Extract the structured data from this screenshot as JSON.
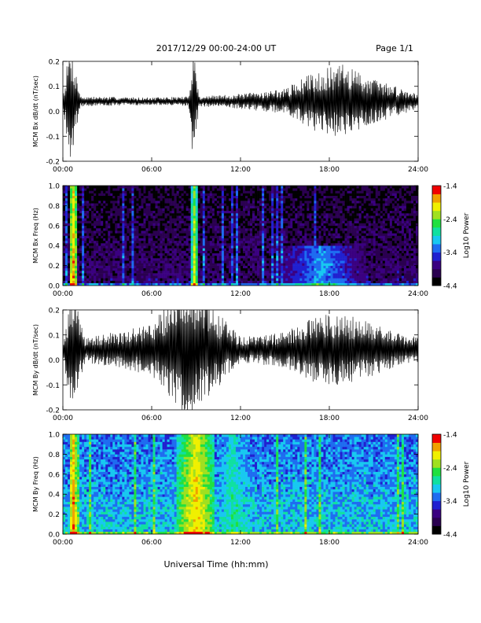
{
  "header": {
    "date_range": "2017/12/29  00:00-24:00 UT",
    "page": "Page 1/1"
  },
  "xaxis_label": "Universal Time (hh:mm)",
  "time_ticks": [
    "00:00",
    "06:00",
    "12:00",
    "18:00",
    "24:00"
  ],
  "colors": {
    "colormap": [
      "#000000",
      "#2a0050",
      "#3a0080",
      "#2020d0",
      "#1e6cf0",
      "#18c8f0",
      "#10e0a0",
      "#20e040",
      "#a0e020",
      "#f0f000",
      "#f0a000",
      "#f00000"
    ]
  },
  "chart_data": [
    {
      "type": "line",
      "ylabel": "MCM Bx dB/dt (nT/sec)",
      "x_unit": "hours UT",
      "xlim": [
        0,
        24
      ],
      "ylim": [
        -0.2,
        0.2
      ],
      "yticks": [
        "-0.2",
        "-0.1",
        "0.0",
        "0.1",
        "0.2"
      ],
      "baseline": 0.04,
      "noise_envelope": [
        {
          "t": 0,
          "amp": 0.02
        },
        {
          "t": 0.5,
          "amp": 0.25
        },
        {
          "t": 1.2,
          "amp": 0.02
        },
        {
          "t": 6,
          "amp": 0.015
        },
        {
          "t": 8.5,
          "amp": 0.02
        },
        {
          "t": 8.8,
          "amp": 0.25
        },
        {
          "t": 9.2,
          "amp": 0.02
        },
        {
          "t": 12,
          "amp": 0.03
        },
        {
          "t": 15,
          "amp": 0.05
        },
        {
          "t": 17,
          "amp": 0.12
        },
        {
          "t": 19,
          "amp": 0.15
        },
        {
          "t": 21,
          "amp": 0.09
        },
        {
          "t": 24,
          "amp": 0.03
        }
      ]
    },
    {
      "type": "heatmap",
      "ylabel": "MCM Bx Freq (Hz)",
      "xlim": [
        0,
        24
      ],
      "ylim": [
        0,
        1.0
      ],
      "yticks": [
        "0.0",
        "0.2",
        "0.4",
        "0.6",
        "0.8",
        "1.0"
      ],
      "colorbar_label": "Log10 Power",
      "colorbar_ticks": [
        "-1.4",
        "-2.4",
        "-3.4",
        "-4.4"
      ],
      "zlim": [
        -4.4,
        -1.4
      ],
      "background_level": -3.9,
      "events": [
        {
          "t": 0.7,
          "width": 0.5,
          "level": -1.7
        },
        {
          "t": 8.9,
          "width": 0.4,
          "level": -2.0
        },
        {
          "t": 17.5,
          "width": 6,
          "level": -3.1,
          "fmax": 0.4
        }
      ]
    },
    {
      "type": "line",
      "ylabel": "MCM By dB/dt (nT/sec)",
      "x_unit": "hours UT",
      "xlim": [
        0,
        24
      ],
      "ylim": [
        -0.2,
        0.2
      ],
      "yticks": [
        "-0.2",
        "-0.1",
        "0.0",
        "0.1",
        "0.2"
      ],
      "baseline": 0.04,
      "noise_envelope": [
        {
          "t": 0,
          "amp": 0.04
        },
        {
          "t": 0.6,
          "amp": 0.25
        },
        {
          "t": 1.5,
          "amp": 0.05
        },
        {
          "t": 6,
          "amp": 0.1
        },
        {
          "t": 8.5,
          "amp": 0.3
        },
        {
          "t": 10.5,
          "amp": 0.15
        },
        {
          "t": 12,
          "amp": 0.05
        },
        {
          "t": 15,
          "amp": 0.07
        },
        {
          "t": 17.5,
          "amp": 0.15
        },
        {
          "t": 20,
          "amp": 0.13
        },
        {
          "t": 22,
          "amp": 0.08
        },
        {
          "t": 24,
          "amp": 0.05
        }
      ]
    },
    {
      "type": "heatmap",
      "ylabel": "MCM By Freq (Hz)",
      "xlim": [
        0,
        24
      ],
      "ylim": [
        0,
        1.0
      ],
      "yticks": [
        "0.0",
        "0.2",
        "0.4",
        "0.6",
        "0.8",
        "1.0"
      ],
      "colorbar_label": "Log10 Power",
      "colorbar_ticks": [
        "-1.4",
        "-2.4",
        "-3.4",
        "-4.4"
      ],
      "zlim": [
        -4.4,
        -1.4
      ],
      "background_level": -3.0,
      "events": [
        {
          "t": 0.7,
          "width": 0.5,
          "level": -1.6
        },
        {
          "t": 9.0,
          "width": 2.5,
          "level": -1.8
        },
        {
          "t": 11.5,
          "width": 3,
          "level": -2.6
        },
        {
          "t": 19,
          "width": 10,
          "level": -3.3,
          "fmax": 0.4
        }
      ]
    }
  ]
}
